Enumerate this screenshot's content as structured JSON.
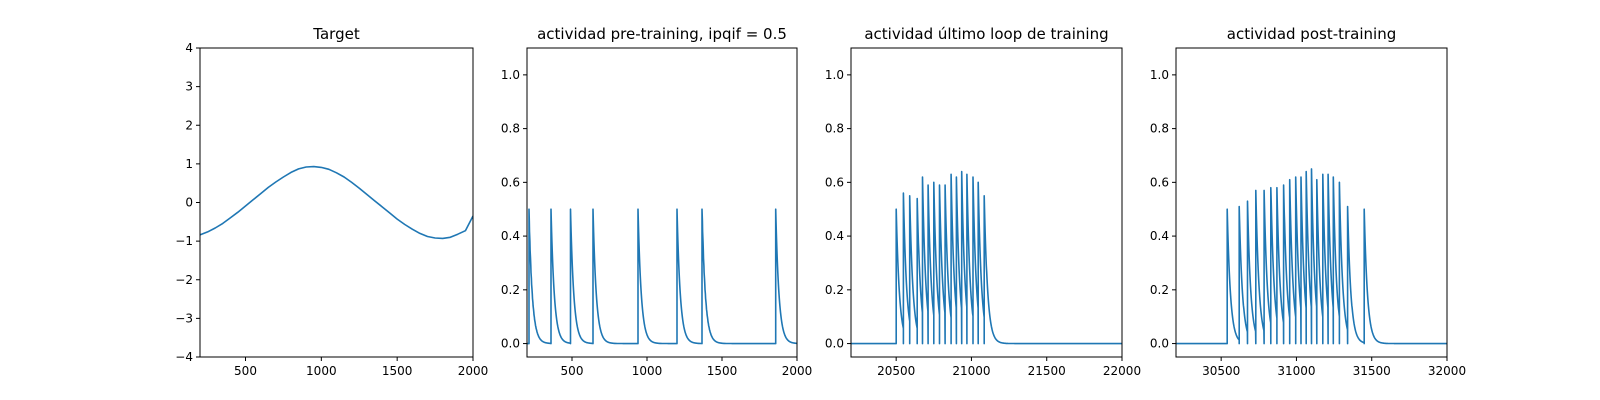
{
  "chart_data": [
    {
      "type": "line",
      "title": "Target",
      "xlim": [
        200,
        2000
      ],
      "ylim": [
        -4,
        4
      ],
      "xticks": [
        500,
        1000,
        1500,
        2000
      ],
      "yticks": [
        -4,
        -3,
        -2,
        -1,
        0,
        1,
        2,
        3,
        4
      ],
      "xtick_labels": [
        "500",
        "1000",
        "1500",
        "2000"
      ],
      "ytick_labels": [
        "−4",
        "−3",
        "−2",
        "−1",
        "0",
        "1",
        "2",
        "3",
        "4"
      ],
      "color": "#1f77b4",
      "series": [
        {
          "x": [
            200,
            250,
            300,
            350,
            400,
            450,
            500,
            550,
            600,
            650,
            700,
            750,
            800,
            850,
            900,
            950,
            1000,
            1050,
            1100,
            1150,
            1200,
            1250,
            1300,
            1350,
            1400,
            1450,
            1500,
            1550,
            1600,
            1650,
            1700,
            1750,
            1800,
            1850,
            1900,
            1950,
            2000
          ],
          "y": [
            -0.84,
            -0.76,
            -0.66,
            -0.54,
            -0.4,
            -0.25,
            -0.09,
            0.07,
            0.23,
            0.39,
            0.53,
            0.66,
            0.78,
            0.87,
            0.92,
            0.93,
            0.91,
            0.86,
            0.77,
            0.66,
            0.52,
            0.37,
            0.21,
            0.05,
            -0.11,
            -0.27,
            -0.43,
            -0.57,
            -0.69,
            -0.8,
            -0.88,
            -0.92,
            -0.93,
            -0.9,
            -0.82,
            -0.73,
            -0.35
          ]
        }
      ]
    },
    {
      "type": "line",
      "title": "actividad pre-training, ipqif = 0.5",
      "xlim": [
        200,
        2000
      ],
      "ylim": [
        -0.05,
        1.1
      ],
      "xticks": [
        500,
        1000,
        1500,
        2000
      ],
      "yticks": [
        0.0,
        0.2,
        0.4,
        0.6,
        0.8,
        1.0
      ],
      "xtick_labels": [
        "500",
        "1000",
        "1500",
        "2000"
      ],
      "ytick_labels": [
        "0.0",
        "0.2",
        "0.4",
        "0.6",
        "0.8",
        "1.0"
      ],
      "color": "#1f77b4",
      "baseline": 0.0,
      "spikes": [
        {
          "t": 213,
          "peak": 0.5
        },
        {
          "t": 360,
          "peak": 0.5
        },
        {
          "t": 490,
          "peak": 0.5
        },
        {
          "t": 640,
          "peak": 0.5
        },
        {
          "t": 940,
          "peak": 0.5
        },
        {
          "t": 1200,
          "peak": 0.5
        },
        {
          "t": 1367,
          "peak": 0.5
        },
        {
          "t": 1858,
          "peak": 0.5
        }
      ]
    },
    {
      "type": "line",
      "title": "actividad último loop de training",
      "xlim": [
        20200,
        22000
      ],
      "ylim": [
        -0.05,
        1.1
      ],
      "xticks": [
        20500,
        21000,
        21500,
        22000
      ],
      "yticks": [
        0.0,
        0.2,
        0.4,
        0.6,
        0.8,
        1.0
      ],
      "xtick_labels": [
        "20500",
        "21000",
        "21500",
        "22000"
      ],
      "ytick_labels": [
        "0.0",
        "0.2",
        "0.4",
        "0.6",
        "0.8",
        "1.0"
      ],
      "color": "#1f77b4",
      "baseline": 0.0,
      "spikes": [
        {
          "t": 20500,
          "peak": 0.5
        },
        {
          "t": 20548,
          "peak": 0.56
        },
        {
          "t": 20590,
          "peak": 0.55
        },
        {
          "t": 20640,
          "peak": 0.54
        },
        {
          "t": 20675,
          "peak": 0.62
        },
        {
          "t": 20712,
          "peak": 0.59
        },
        {
          "t": 20750,
          "peak": 0.6
        },
        {
          "t": 20788,
          "peak": 0.59
        },
        {
          "t": 20825,
          "peak": 0.59
        },
        {
          "t": 20865,
          "peak": 0.63
        },
        {
          "t": 20900,
          "peak": 0.62
        },
        {
          "t": 20935,
          "peak": 0.64
        },
        {
          "t": 20970,
          "peak": 0.63
        },
        {
          "t": 21010,
          "peak": 0.62
        },
        {
          "t": 21045,
          "peak": 0.6
        },
        {
          "t": 21085,
          "peak": 0.55
        }
      ]
    },
    {
      "type": "line",
      "title": "actividad post-training",
      "xlim": [
        30200,
        32000
      ],
      "ylim": [
        -0.05,
        1.1
      ],
      "xticks": [
        30500,
        31000,
        31500,
        32000
      ],
      "yticks": [
        0.0,
        0.2,
        0.4,
        0.6,
        0.8,
        1.0
      ],
      "xtick_labels": [
        "30500",
        "31000",
        "31500",
        "32000"
      ],
      "ytick_labels": [
        "0.0",
        "0.2",
        "0.4",
        "0.6",
        "0.8",
        "1.0"
      ],
      "color": "#1f77b4",
      "baseline": 0.0,
      "spikes": [
        {
          "t": 30540,
          "peak": 0.5
        },
        {
          "t": 30620,
          "peak": 0.51
        },
        {
          "t": 30675,
          "peak": 0.53
        },
        {
          "t": 30730,
          "peak": 0.57
        },
        {
          "t": 30785,
          "peak": 0.57
        },
        {
          "t": 30830,
          "peak": 0.58
        },
        {
          "t": 30870,
          "peak": 0.58
        },
        {
          "t": 30915,
          "peak": 0.59
        },
        {
          "t": 30955,
          "peak": 0.61
        },
        {
          "t": 30995,
          "peak": 0.62
        },
        {
          "t": 31030,
          "peak": 0.62
        },
        {
          "t": 31065,
          "peak": 0.64
        },
        {
          "t": 31100,
          "peak": 0.65
        },
        {
          "t": 31135,
          "peak": 0.61
        },
        {
          "t": 31175,
          "peak": 0.63
        },
        {
          "t": 31210,
          "peak": 0.63
        },
        {
          "t": 31245,
          "peak": 0.62
        },
        {
          "t": 31285,
          "peak": 0.6
        },
        {
          "t": 31340,
          "peak": 0.51
        },
        {
          "t": 31450,
          "peak": 0.5
        }
      ]
    }
  ]
}
